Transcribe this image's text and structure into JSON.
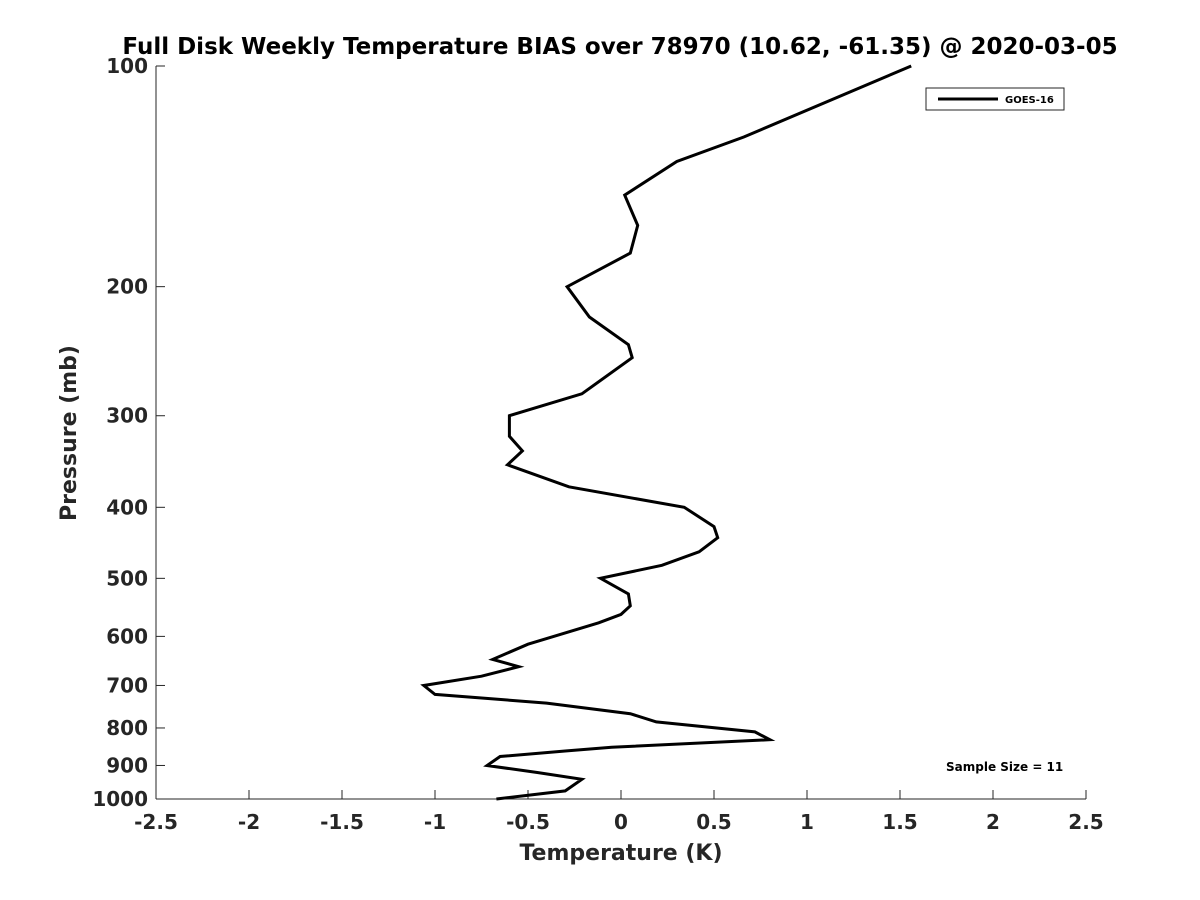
{
  "chart_data": {
    "type": "line",
    "title": "Full Disk Weekly Temperature BIAS over 78970 (10.62, -61.35) @ 2020-03-05",
    "xlabel": "Temperature (K)",
    "ylabel": "Pressure (mb)",
    "xlim": [
      -2.5,
      2.5
    ],
    "ylim": [
      100,
      1000
    ],
    "yscale": "log",
    "yreversed": true,
    "x_ticks": [
      "-2.5",
      "-2",
      "-1.5",
      "-1",
      "-0.5",
      "0",
      "0.5",
      "1",
      "1.5",
      "2",
      "2.5"
    ],
    "x_tick_values": [
      -2.5,
      -2,
      -1.5,
      -1,
      -0.5,
      0,
      0.5,
      1,
      1.5,
      2,
      2.5
    ],
    "y_ticks": [
      "100",
      "200",
      "300",
      "400",
      "500",
      "600",
      "700",
      "800",
      "900",
      "1000"
    ],
    "y_tick_values": [
      100,
      200,
      300,
      400,
      500,
      600,
      700,
      800,
      900,
      1000
    ],
    "grid": false,
    "legend_position": "top-right",
    "annotation": "Sample Size = 11",
    "series": [
      {
        "name": "GOES-16",
        "color": "#000000",
        "points": [
          {
            "t": 1.56,
            "p": 100
          },
          {
            "t": 0.66,
            "p": 125
          },
          {
            "t": 0.3,
            "p": 135
          },
          {
            "t": 0.02,
            "p": 150
          },
          {
            "t": 0.09,
            "p": 165
          },
          {
            "t": 0.05,
            "p": 180
          },
          {
            "t": -0.29,
            "p": 200
          },
          {
            "t": -0.17,
            "p": 220
          },
          {
            "t": 0.04,
            "p": 240
          },
          {
            "t": 0.06,
            "p": 250
          },
          {
            "t": -0.21,
            "p": 280
          },
          {
            "t": -0.6,
            "p": 300
          },
          {
            "t": -0.6,
            "p": 320
          },
          {
            "t": -0.53,
            "p": 335
          },
          {
            "t": -0.61,
            "p": 350
          },
          {
            "t": -0.28,
            "p": 375
          },
          {
            "t": 0.34,
            "p": 400
          },
          {
            "t": 0.5,
            "p": 425
          },
          {
            "t": 0.52,
            "p": 440
          },
          {
            "t": 0.42,
            "p": 460
          },
          {
            "t": 0.22,
            "p": 480
          },
          {
            "t": -0.11,
            "p": 500
          },
          {
            "t": 0.04,
            "p": 525
          },
          {
            "t": 0.05,
            "p": 545
          },
          {
            "t": 0.0,
            "p": 560
          },
          {
            "t": -0.12,
            "p": 575
          },
          {
            "t": -0.5,
            "p": 615
          },
          {
            "t": -0.69,
            "p": 645
          },
          {
            "t": -0.55,
            "p": 660
          },
          {
            "t": -0.75,
            "p": 680
          },
          {
            "t": -1.06,
            "p": 700
          },
          {
            "t": -1.0,
            "p": 720
          },
          {
            "t": -0.4,
            "p": 740
          },
          {
            "t": 0.05,
            "p": 765
          },
          {
            "t": 0.19,
            "p": 785
          },
          {
            "t": 0.72,
            "p": 810
          },
          {
            "t": 0.8,
            "p": 830
          },
          {
            "t": -0.05,
            "p": 850
          },
          {
            "t": -0.3,
            "p": 860
          },
          {
            "t": -0.65,
            "p": 875
          },
          {
            "t": -0.72,
            "p": 900
          },
          {
            "t": -0.45,
            "p": 920
          },
          {
            "t": -0.21,
            "p": 940
          },
          {
            "t": -0.3,
            "p": 975
          },
          {
            "t": -0.67,
            "p": 1000
          }
        ]
      }
    ]
  }
}
